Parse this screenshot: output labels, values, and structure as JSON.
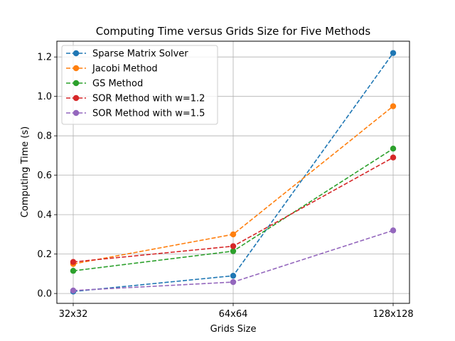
{
  "chart_data": {
    "type": "line",
    "title": "Computing Time versus Grids Size for Five Methods",
    "xlabel": "Grids Size",
    "ylabel": "Computing Time (s)",
    "categories": [
      "32x32",
      "64x64",
      "128x128"
    ],
    "ylim": [
      -0.05,
      1.28
    ],
    "yticks": [
      "0.0",
      "0.2",
      "0.4",
      "0.6",
      "0.8",
      "1.0",
      "1.2"
    ],
    "grid": true,
    "legend_position": "top-left",
    "series": [
      {
        "name": "Sparse Matrix Solver",
        "color": "#1f77b4",
        "values": [
          0.01,
          0.09,
          1.22
        ]
      },
      {
        "name": "Jacobi Method",
        "color": "#ff7f0e",
        "values": [
          0.15,
          0.3,
          0.95
        ]
      },
      {
        "name": "GS Method",
        "color": "#2ca02c",
        "values": [
          0.115,
          0.215,
          0.735
        ]
      },
      {
        "name": "SOR Method with w=1.2",
        "color": "#d62728",
        "values": [
          0.16,
          0.24,
          0.69
        ]
      },
      {
        "name": "SOR Method with w=1.5",
        "color": "#9467bd",
        "values": [
          0.015,
          0.058,
          0.32
        ]
      }
    ]
  }
}
